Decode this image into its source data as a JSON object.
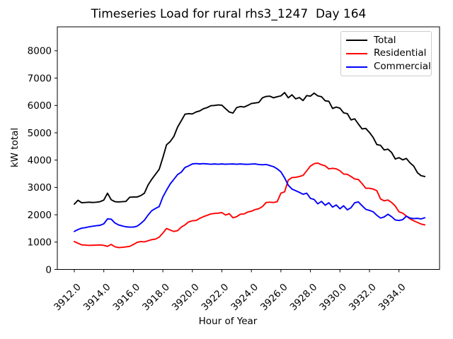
{
  "chart_data": {
    "type": "line",
    "title": "Timeseries Load for rural rhs3_1247  Day 164",
    "xlabel": "Hour of Year",
    "ylabel": "kW total",
    "grid": false,
    "legend_position": "upper right",
    "x_start": 3912.0,
    "x_step": 0.25,
    "xlim": [
      3910.85,
      3936.75
    ],
    "ylim": [
      0,
      8876
    ],
    "x_ticks": [
      3912,
      3914,
      3916,
      3918,
      3920,
      3922,
      3924,
      3926,
      3928,
      3930,
      3932,
      3934
    ],
    "x_tick_labels": [
      "3912.0",
      "3914.0",
      "3916.0",
      "3918.0",
      "3920.0",
      "3922.0",
      "3924.0",
      "3926.0",
      "3928.0",
      "3930.0",
      "3932.0",
      "3934.0"
    ],
    "y_ticks": [
      0,
      1000,
      2000,
      3000,
      4000,
      5000,
      6000,
      7000,
      8000
    ],
    "y_tick_labels": [
      "0",
      "1000",
      "2000",
      "3000",
      "4000",
      "5000",
      "6000",
      "7000",
      "8000"
    ],
    "series": [
      {
        "name": "Total",
        "color": "#000000",
        "values": [
          2390,
          2530,
          2440,
          2450,
          2460,
          2450,
          2460,
          2480,
          2540,
          2790,
          2550,
          2480,
          2470,
          2480,
          2490,
          2640,
          2650,
          2650,
          2700,
          2790,
          3090,
          3300,
          3480,
          3660,
          4090,
          4560,
          4680,
          4870,
          5210,
          5440,
          5680,
          5700,
          5690,
          5760,
          5800,
          5880,
          5920,
          5990,
          6000,
          6020,
          6010,
          5880,
          5760,
          5720,
          5920,
          5960,
          5940,
          6000,
          6070,
          6090,
          6110,
          6280,
          6330,
          6340,
          6280,
          6320,
          6350,
          6470,
          6280,
          6390,
          6240,
          6290,
          6180,
          6360,
          6340,
          6450,
          6350,
          6320,
          6170,
          6150,
          5890,
          5940,
          5900,
          5730,
          5700,
          5470,
          5510,
          5320,
          5140,
          5160,
          5010,
          4830,
          4570,
          4540,
          4370,
          4400,
          4280,
          4040,
          4090,
          4010,
          4060,
          3900,
          3780,
          3540,
          3430,
          3400
        ]
      },
      {
        "name": "Residential",
        "color": "#ff0000",
        "values": [
          1020,
          960,
          900,
          890,
          880,
          885,
          890,
          895,
          880,
          845,
          915,
          830,
          800,
          810,
          825,
          845,
          910,
          990,
          1020,
          1010,
          1050,
          1090,
          1110,
          1180,
          1330,
          1500,
          1440,
          1390,
          1420,
          1550,
          1630,
          1740,
          1780,
          1790,
          1870,
          1930,
          1980,
          2030,
          2050,
          2060,
          2080,
          1990,
          2040,
          1890,
          1930,
          2020,
          2030,
          2100,
          2130,
          2190,
          2220,
          2300,
          2450,
          2460,
          2450,
          2480,
          2790,
          2840,
          3270,
          3360,
          3370,
          3400,
          3440,
          3610,
          3780,
          3870,
          3890,
          3830,
          3790,
          3680,
          3700,
          3680,
          3610,
          3490,
          3480,
          3400,
          3310,
          3290,
          3140,
          2970,
          2970,
          2940,
          2880,
          2580,
          2510,
          2540,
          2450,
          2320,
          2110,
          2060,
          1950,
          1850,
          1780,
          1720,
          1660,
          1630
        ]
      },
      {
        "name": "Commercial",
        "color": "#0000ff",
        "values": [
          1390,
          1460,
          1510,
          1530,
          1560,
          1580,
          1600,
          1615,
          1670,
          1850,
          1840,
          1700,
          1630,
          1590,
          1560,
          1550,
          1550,
          1580,
          1680,
          1800,
          1990,
          2150,
          2230,
          2300,
          2650,
          2900,
          3130,
          3300,
          3470,
          3560,
          3730,
          3790,
          3860,
          3875,
          3860,
          3870,
          3860,
          3850,
          3860,
          3850,
          3860,
          3850,
          3855,
          3860,
          3850,
          3860,
          3850,
          3845,
          3855,
          3860,
          3840,
          3830,
          3840,
          3800,
          3760,
          3680,
          3570,
          3350,
          3080,
          2940,
          2880,
          2820,
          2750,
          2790,
          2600,
          2560,
          2400,
          2490,
          2350,
          2440,
          2280,
          2360,
          2220,
          2330,
          2180,
          2260,
          2440,
          2470,
          2330,
          2200,
          2160,
          2110,
          1980,
          1880,
          1920,
          2020,
          1930,
          1810,
          1790,
          1820,
          1950,
          1880,
          1860,
          1870,
          1850,
          1890
        ]
      }
    ]
  }
}
